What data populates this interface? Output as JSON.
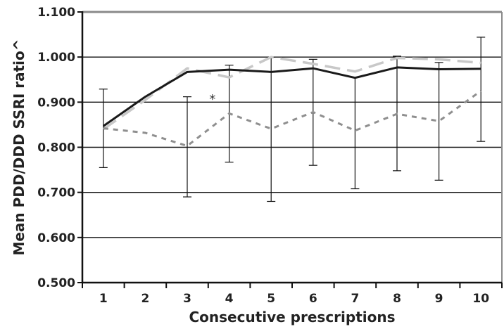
{
  "chart_data": {
    "type": "line",
    "title": "",
    "xlabel": "Consecutive prescriptions",
    "ylabel": "Mean  PDD/DDD SSRI ratio^",
    "x": [
      1,
      2,
      3,
      4,
      5,
      6,
      7,
      8,
      9,
      10
    ],
    "x_tick_labels": [
      "1",
      "2",
      "3",
      "4",
      "5",
      "6",
      "7",
      "8",
      "9",
      "10"
    ],
    "ylim": [
      0.5,
      1.1
    ],
    "y_ticks": [
      0.5,
      0.6,
      0.7,
      0.8,
      0.9,
      1.0,
      1.1
    ],
    "y_tick_labels": [
      "0.500",
      "0.600",
      "0.700",
      "0.800",
      "0.900",
      "1.000",
      "1.100"
    ],
    "grid": "horizontal",
    "series": [
      {
        "style": "solid",
        "color": "#1a1a1a",
        "values": [
          0.847,
          0.912,
          0.967,
          0.972,
          0.967,
          0.975,
          0.954,
          0.977,
          0.973,
          0.974
        ],
        "error_low": [
          0.755,
          null,
          0.69,
          0.767,
          0.68,
          0.76,
          0.708,
          0.748,
          0.727,
          0.813
        ],
        "error_high": [
          0.929,
          null,
          0.912,
          0.982,
          1.0,
          0.995,
          null,
          1.002,
          0.988,
          1.044
        ]
      },
      {
        "style": "long-dash",
        "color": "#c8c8c8",
        "values": [
          0.84,
          0.905,
          0.975,
          0.955,
          1.0,
          0.985,
          0.968,
          0.998,
          0.995,
          0.987
        ]
      },
      {
        "style": "short-dash",
        "color": "#8f8f8f",
        "values": [
          0.842,
          0.832,
          0.803,
          0.875,
          0.841,
          0.878,
          0.837,
          0.874,
          0.858,
          0.925
        ]
      }
    ],
    "annotations": [
      {
        "text": "*",
        "x": 3.6,
        "y": 0.913
      }
    ]
  }
}
